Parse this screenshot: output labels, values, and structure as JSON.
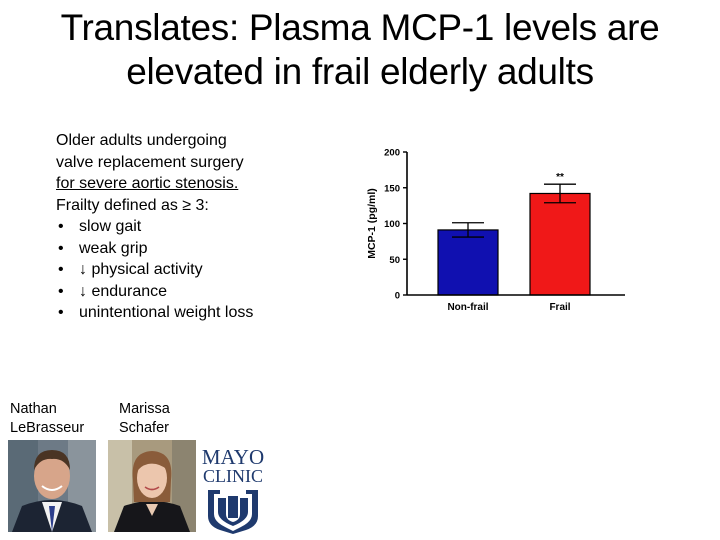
{
  "slide": {
    "title_lines": [
      "Translates: Plasma MCP-1 levels are",
      "elevated in frail elderly adults"
    ],
    "description_lines": [
      "Older adults undergoing",
      "valve replacement surgery",
      "for severe aortic stenosis."
    ],
    "frailty_heading": "Frailty defined as ≥ 3:",
    "frailty_criteria": [
      "slow gait",
      "weak grip",
      "↓ physical activity",
      "↓ endurance",
      "unintentional weight loss"
    ],
    "people": [
      {
        "first": "Nathan",
        "last": "LeBrasseur"
      },
      {
        "first": "Marissa",
        "last": "Schafer"
      }
    ],
    "logo": {
      "line1": "MAYO",
      "line2": "CLINIC",
      "color": "#1f3a6e"
    }
  },
  "chart_data": {
    "type": "bar",
    "categories": [
      "Non-frail",
      "Frail"
    ],
    "values": [
      91,
      142
    ],
    "errors": [
      10,
      13
    ],
    "colors": [
      "#1010b0",
      "#f01818"
    ],
    "ylabel": "MCP-1 (pg/ml)",
    "ylim": [
      0,
      200
    ],
    "yticks": [
      0,
      50,
      100,
      150,
      200
    ],
    "significance": {
      "category": "Frail",
      "label": "**"
    },
    "grid": false
  }
}
